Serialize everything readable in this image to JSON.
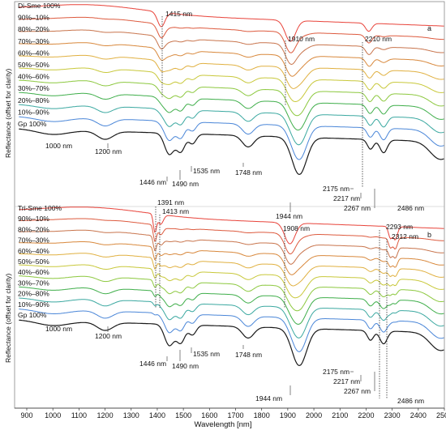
{
  "colors": {
    "c0": "#e8433a",
    "c1": "#dd5a3e",
    "c2": "#c8744c",
    "c3": "#d8883c",
    "c4": "#e0b040",
    "c5": "#c8c83a",
    "c6": "#8cc83e",
    "c7": "#3fae4a",
    "c8": "#3aa8a0",
    "c9": "#4a86d8",
    "c10": "#1a1a1a"
  },
  "chart_data": [
    {
      "type": "line",
      "panel": "a",
      "xlabel": "Wavelength [nm]",
      "ylabel": "Reflectance (offset for clarity)",
      "xlim": [
        860,
        2500
      ],
      "xticks": [
        900,
        1000,
        1100,
        1200,
        1300,
        1400,
        1500,
        1600,
        1700,
        1800,
        1900,
        2000,
        2100,
        2200,
        2300,
        2400,
        2500
      ],
      "series": [
        {
          "name": "Di-Sme 100%"
        },
        {
          "name": "90%–10%"
        },
        {
          "name": "80%–20%"
        },
        {
          "name": "70%–30%"
        },
        {
          "name": "60%–40%"
        },
        {
          "name": "50%–50%"
        },
        {
          "name": "40%–60%"
        },
        {
          "name": "30%–70%"
        },
        {
          "name": "20%–80%"
        },
        {
          "name": "10%–90%"
        },
        {
          "name": "Gp 100%"
        }
      ],
      "markers_dashed": [
        "1415 nm",
        "1910 nm",
        "2210 nm"
      ],
      "annotations": [
        "1000 nm",
        "1200 nm",
        "1446 nm",
        "1490 nm",
        "1535 nm",
        "1748 nm",
        "1944 nm",
        "2175 nm",
        "2217 nm",
        "2267 nm",
        "2486 nm"
      ]
    },
    {
      "type": "line",
      "panel": "b",
      "xlabel": "Wavelength [nm]",
      "ylabel": "Reflectance (offset for clarity)",
      "xlim": [
        860,
        2500
      ],
      "series": [
        {
          "name": "Tri-Sme 100%"
        },
        {
          "name": "90%–10%"
        },
        {
          "name": "80%–20%"
        },
        {
          "name": "70%–30%"
        },
        {
          "name": "60%–40%"
        },
        {
          "name": "50%–50%"
        },
        {
          "name": "40%–60%"
        },
        {
          "name": "30%–70%"
        },
        {
          "name": "20%–80%"
        },
        {
          "name": "10%–90%"
        },
        {
          "name": "Gp 100%"
        }
      ],
      "markers_dashed": [
        "1391 nm",
        "1413 nm",
        "1908 nm",
        "2293 nm",
        "2312 nm"
      ],
      "annotations": [
        "1000 nm",
        "1200 nm",
        "1446 nm",
        "1490 nm",
        "1535 nm",
        "1748 nm",
        "1944 nm",
        "2175 nm",
        "2217 nm",
        "2267 nm",
        "2486 nm"
      ]
    }
  ],
  "panel_a": {
    "panel_letter": "a",
    "series_labels": [
      "Di-Sme 100%",
      "90%–10%",
      "80%–20%",
      "70%–30%",
      "60%–40%",
      "50%–50%",
      "40%–60%",
      "30%–70%",
      "20%–80%",
      "10%–90%",
      "Gp 100%"
    ],
    "m1415": "1415 nm",
    "m1910": "1910 nm",
    "m2210": "2210 nm",
    "a1000": "1000 nm",
    "a1200": "1200 nm",
    "a1446": "1446 nm",
    "a1490": "1490 nm",
    "a1535": "1535 nm",
    "a1748": "1748 nm",
    "a1944": "1944 nm",
    "a2175": "2175 nm",
    "a2217": "2217 nm",
    "a2267": "2267 nm",
    "a2486": "2486 nm"
  },
  "panel_b": {
    "panel_letter": "b",
    "series_labels": [
      "Tri-Sme 100%",
      "90%–10%",
      "80%–20%",
      "70%–30%",
      "60%–40%",
      "50%–50%",
      "40%–60%",
      "30%–70%",
      "20%–80%",
      "10%–90%",
      "Gp 100%"
    ],
    "m1391": "1391 nm",
    "m1413": "1413 nm",
    "m1908": "1908 nm",
    "m2293": "2293 nm",
    "m2312": "2312 nm",
    "a1000": "1000 nm",
    "a1200": "1200 nm",
    "a1446": "1446 nm",
    "a1490": "1490 nm",
    "a1535": "1535 nm",
    "a1748": "1748 nm",
    "a1944": "1944 nm",
    "a2175": "2175 nm",
    "a2217": "2217 nm",
    "a2267": "2267 nm",
    "a2486": "2486 nm"
  },
  "axes": {
    "xlabel": "Wavelength [nm]",
    "ylabel_a": "Reflectance (offset for clarity)",
    "ylabel_b": "Reflectance (offset for clarity)",
    "xticks": [
      "900",
      "1000",
      "1100",
      "1200",
      "1300",
      "1400",
      "1500",
      "1600",
      "1700",
      "1800",
      "1900",
      "2000",
      "2100",
      "2200",
      "2300",
      "2400",
      "2500"
    ]
  }
}
